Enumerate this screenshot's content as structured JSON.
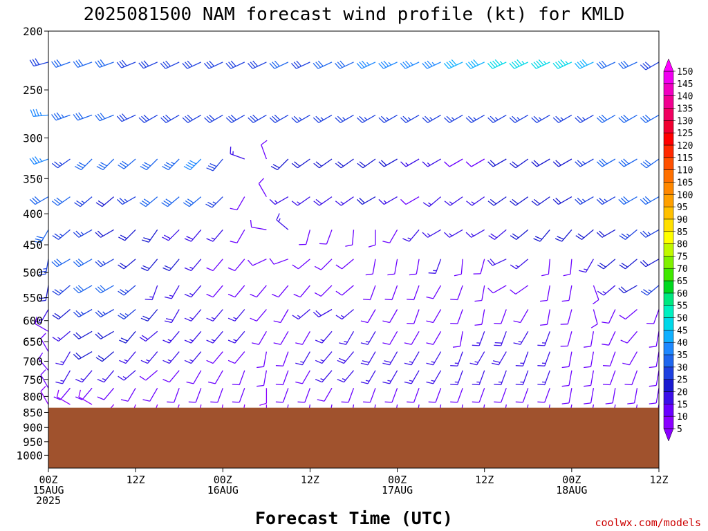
{
  "chart_data": {
    "type": "wind-barb-time-height",
    "title": "2025081500 NAM forecast wind profile (kt) for KMLD",
    "xlabel": "Forecast Time (UTC)",
    "ylabel": "",
    "credit": "coolwx.com/models",
    "y_axis": {
      "scale": "log-pressure",
      "range": [
        1050,
        200
      ],
      "unit": "hPa",
      "ticks": [
        200,
        250,
        300,
        350,
        400,
        450,
        500,
        550,
        600,
        650,
        700,
        750,
        800,
        850,
        900,
        950,
        1000
      ]
    },
    "x_axis": {
      "range_hours": [
        0,
        84
      ],
      "ticks": [
        {
          "hour": 0,
          "lines": [
            "00Z",
            "15AUG",
            "2025"
          ]
        },
        {
          "hour": 12,
          "lines": [
            "12Z"
          ]
        },
        {
          "hour": 24,
          "lines": [
            "00Z",
            "16AUG"
          ]
        },
        {
          "hour": 36,
          "lines": [
            "12Z"
          ]
        },
        {
          "hour": 48,
          "lines": [
            "00Z",
            "17AUG"
          ]
        },
        {
          "hour": 60,
          "lines": [
            "12Z"
          ]
        },
        {
          "hour": 72,
          "lines": [
            "00Z",
            "18AUG"
          ]
        },
        {
          "hour": 84,
          "lines": [
            "12Z"
          ]
        }
      ]
    },
    "colorbar": {
      "unit": "kt",
      "levels": [
        5,
        10,
        15,
        20,
        25,
        30,
        35,
        40,
        45,
        50,
        55,
        60,
        65,
        70,
        75,
        80,
        85,
        90,
        95,
        100,
        105,
        110,
        115,
        120,
        125,
        130,
        135,
        140,
        145,
        150
      ],
      "colors": [
        "#8a00ff",
        "#6a00ff",
        "#3c10e8",
        "#1a1ad0",
        "#1e40e0",
        "#1e66ee",
        "#1e88ff",
        "#10b0ff",
        "#00d8e8",
        "#00f0c0",
        "#00e880",
        "#00d820",
        "#40e800",
        "#80f000",
        "#c0f800",
        "#ffff00",
        "#ffe000",
        "#ffc000",
        "#ffa000",
        "#ff8800",
        "#ff7000",
        "#ff5000",
        "#ff2800",
        "#ff0000",
        "#f00030",
        "#f00060",
        "#f00090",
        "#f000c0",
        "#f000f0",
        "#ff00ff"
      ]
    },
    "surface_pressure_hPa": 835,
    "surface_color": "#a0522d",
    "forecast_hours": [
      0,
      3,
      6,
      9,
      12,
      15,
      18,
      21,
      24,
      27,
      30,
      33,
      36,
      39,
      42,
      45,
      48,
      51,
      54,
      57,
      60,
      63,
      66,
      69,
      72,
      75,
      78,
      81,
      84
    ],
    "levels_hPa": [
      225,
      275,
      325,
      375,
      425,
      475,
      525,
      575,
      625,
      675,
      725,
      775,
      825
    ],
    "wind_dir_deg": [
      [
        255,
        250,
        250,
        250,
        248,
        246,
        245,
        245,
        245,
        245,
        245,
        245,
        245,
        245,
        245,
        245,
        245,
        245,
        245,
        245,
        245,
        245,
        245,
        245,
        245,
        245,
        245,
        245,
        240
      ],
      [
        265,
        250,
        250,
        248,
        245,
        240,
        240,
        240,
        240,
        240,
        240,
        240,
        240,
        240,
        240,
        240,
        240,
        240,
        240,
        240,
        240,
        240,
        240,
        240,
        240,
        240,
        240,
        240,
        240
      ],
      [
        250,
        235,
        225,
        225,
        230,
        225,
        225,
        225,
        220,
        290,
        340,
        225,
        235,
        235,
        235,
        235,
        240,
        240,
        240,
        240,
        240,
        240,
        235,
        240,
        240,
        240,
        240,
        240,
        235
      ],
      [
        240,
        235,
        230,
        230,
        240,
        230,
        230,
        230,
        225,
        210,
        330,
        240,
        235,
        235,
        235,
        240,
        240,
        240,
        230,
        235,
        235,
        235,
        235,
        235,
        240,
        240,
        240,
        240,
        240
      ],
      [
        210,
        230,
        240,
        240,
        225,
        215,
        225,
        220,
        220,
        210,
        280,
        310,
        195,
        200,
        185,
        180,
        210,
        220,
        240,
        240,
        240,
        230,
        230,
        220,
        220,
        230,
        240,
        230,
        240
      ],
      [
        190,
        240,
        240,
        240,
        230,
        220,
        220,
        220,
        220,
        220,
        245,
        250,
        230,
        225,
        230,
        190,
        190,
        190,
        200,
        185,
        195,
        245,
        230,
        185,
        185,
        210,
        230,
        230,
        240
      ],
      [
        190,
        230,
        240,
        240,
        230,
        200,
        210,
        220,
        220,
        220,
        220,
        220,
        220,
        225,
        230,
        200,
        200,
        200,
        210,
        200,
        190,
        240,
        235,
        190,
        190,
        160,
        230,
        240,
        230
      ],
      [
        210,
        230,
        240,
        240,
        230,
        220,
        210,
        220,
        220,
        220,
        220,
        210,
        230,
        240,
        230,
        210,
        210,
        200,
        210,
        200,
        190,
        200,
        210,
        190,
        195,
        165,
        205,
        230,
        200
      ],
      [
        300,
        230,
        240,
        240,
        220,
        230,
        220,
        220,
        220,
        220,
        210,
        210,
        210,
        220,
        210,
        210,
        210,
        210,
        210,
        190,
        200,
        200,
        210,
        200,
        195,
        190,
        205,
        220,
        190
      ],
      [
        330,
        210,
        240,
        230,
        220,
        220,
        220,
        220,
        220,
        220,
        190,
        200,
        210,
        220,
        220,
        210,
        210,
        210,
        210,
        200,
        210,
        210,
        200,
        200,
        190,
        190,
        200,
        210,
        190
      ],
      [
        320,
        210,
        220,
        220,
        230,
        230,
        220,
        210,
        210,
        200,
        190,
        200,
        210,
        220,
        220,
        210,
        210,
        210,
        210,
        200,
        200,
        200,
        200,
        200,
        190,
        190,
        200,
        200,
        190
      ],
      [
        330,
        220,
        220,
        220,
        210,
        210,
        200,
        200,
        200,
        200,
        180,
        200,
        200,
        210,
        200,
        200,
        200,
        200,
        200,
        200,
        200,
        200,
        200,
        200,
        190,
        190,
        190,
        190,
        190
      ],
      [
        330,
        300,
        300,
        220,
        200,
        200,
        200,
        190,
        190,
        190,
        180,
        190,
        190,
        190,
        190,
        190,
        190,
        190,
        190,
        190,
        190,
        190,
        190,
        190,
        190,
        190,
        190,
        190,
        190
      ]
    ],
    "wind_speed_kt": [
      [
        28,
        30,
        30,
        30,
        28,
        28,
        28,
        28,
        28,
        28,
        28,
        30,
        28,
        30,
        32,
        35,
        35,
        35,
        35,
        40,
        42,
        45,
        45,
        45,
        45,
        40,
        32,
        30,
        28
      ],
      [
        35,
        33,
        30,
        30,
        28,
        28,
        28,
        28,
        28,
        28,
        28,
        28,
        25,
        25,
        25,
        25,
        25,
        25,
        25,
        25,
        25,
        25,
        25,
        25,
        25,
        25,
        30,
        32,
        32
      ],
      [
        35,
        25,
        30,
        30,
        30,
        30,
        33,
        38,
        28,
        15,
        10,
        20,
        22,
        20,
        20,
        20,
        20,
        15,
        15,
        12,
        12,
        20,
        20,
        20,
        20,
        25,
        30,
        32,
        32
      ],
      [
        32,
        30,
        25,
        22,
        25,
        30,
        32,
        30,
        25,
        12,
        10,
        15,
        15,
        18,
        15,
        20,
        15,
        12,
        15,
        15,
        15,
        20,
        20,
        20,
        20,
        25,
        25,
        30,
        32
      ],
      [
        30,
        25,
        25,
        22,
        22,
        20,
        18,
        18,
        15,
        10,
        10,
        15,
        10,
        10,
        10,
        10,
        10,
        15,
        15,
        15,
        15,
        18,
        20,
        20,
        20,
        20,
        22,
        25,
        25
      ],
      [
        25,
        30,
        30,
        25,
        20,
        20,
        20,
        15,
        12,
        10,
        10,
        10,
        10,
        10,
        10,
        10,
        10,
        10,
        15,
        12,
        10,
        18,
        15,
        10,
        10,
        15,
        20,
        20,
        20
      ],
      [
        20,
        25,
        30,
        30,
        25,
        15,
        15,
        15,
        12,
        10,
        10,
        10,
        10,
        10,
        10,
        10,
        10,
        10,
        10,
        10,
        10,
        10,
        10,
        10,
        10,
        10,
        15,
        20,
        25
      ],
      [
        15,
        20,
        25,
        25,
        25,
        20,
        18,
        15,
        15,
        15,
        12,
        10,
        15,
        18,
        15,
        10,
        10,
        10,
        10,
        10,
        10,
        10,
        10,
        10,
        10,
        10,
        10,
        12,
        10
      ],
      [
        10,
        15,
        20,
        20,
        20,
        18,
        15,
        15,
        15,
        15,
        10,
        10,
        12,
        15,
        15,
        15,
        12,
        12,
        12,
        12,
        15,
        18,
        15,
        15,
        12,
        12,
        12,
        12,
        10
      ],
      [
        10,
        15,
        20,
        20,
        15,
        15,
        15,
        15,
        12,
        12,
        10,
        10,
        15,
        15,
        18,
        18,
        18,
        15,
        15,
        15,
        15,
        18,
        15,
        15,
        12,
        12,
        12,
        10,
        10
      ],
      [
        10,
        15,
        15,
        15,
        15,
        12,
        12,
        12,
        12,
        10,
        10,
        10,
        12,
        15,
        15,
        15,
        15,
        15,
        15,
        15,
        15,
        15,
        15,
        15,
        12,
        12,
        12,
        10,
        10
      ],
      [
        10,
        12,
        12,
        10,
        10,
        10,
        10,
        10,
        10,
        10,
        8,
        10,
        12,
        12,
        12,
        12,
        12,
        12,
        12,
        12,
        12,
        12,
        12,
        12,
        12,
        12,
        12,
        12,
        12
      ],
      [
        8,
        8,
        8,
        8,
        8,
        8,
        8,
        8,
        8,
        8,
        8,
        10,
        12,
        12,
        12,
        12,
        12,
        12,
        12,
        12,
        12,
        12,
        12,
        12,
        12,
        12,
        12,
        12,
        12
      ]
    ]
  }
}
